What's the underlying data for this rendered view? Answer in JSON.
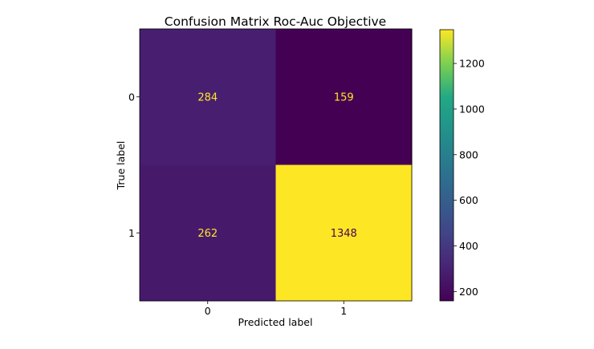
{
  "chart_data": {
    "type": "heatmap",
    "title": "Confusion Matrix Roc-Auc Objective",
    "xlabel": "Predicted label",
    "ylabel": "True label",
    "x_categories": [
      "0",
      "1"
    ],
    "y_categories": [
      "0",
      "1"
    ],
    "matrix": [
      [
        284,
        159
      ],
      [
        262,
        1348
      ]
    ],
    "colormap": "viridis",
    "colorbar": {
      "range": [
        159,
        1348
      ],
      "ticks": [
        200,
        400,
        600,
        800,
        1000,
        1200
      ],
      "tick_labels": [
        "200",
        "400",
        "600",
        "800",
        "1000",
        "1200"
      ]
    },
    "grid": false,
    "legend": "none"
  }
}
